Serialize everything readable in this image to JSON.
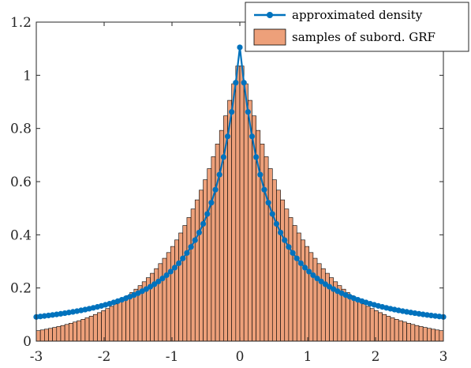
{
  "chart_data": {
    "type": "bar",
    "xlim": [
      -3,
      3
    ],
    "ylim": [
      0,
      1.2
    ],
    "x_ticks": [
      -3,
      -2,
      -1,
      0,
      1,
      2,
      3
    ],
    "y_ticks": [
      0,
      0.2,
      0.4,
      0.6,
      0.8,
      1,
      1.2
    ],
    "x_tick_labels": [
      "-3",
      "-2",
      "-1",
      "0",
      "1",
      "2",
      "3"
    ],
    "y_tick_labels": [
      "0",
      "0.2",
      "0.4",
      "0.6",
      "0.8",
      "1",
      "1.2"
    ],
    "grid": false,
    "legend_position": "top-right",
    "histogram": {
      "name": "samples of subord. GRF",
      "bin_start": -3,
      "bin_width": 0.06,
      "bin_count": 100,
      "edge_scale": 0.9,
      "peak": 1.07,
      "color": "#EDA07A",
      "edge_color": "#000000"
    },
    "density": {
      "name": "approximated density",
      "peak": 1.105,
      "decay": 2.205,
      "x_start": -3,
      "x_step": 0.06,
      "point_count": 101,
      "color": "#0072BD"
    },
    "title": "",
    "xlabel": "",
    "ylabel": ""
  }
}
